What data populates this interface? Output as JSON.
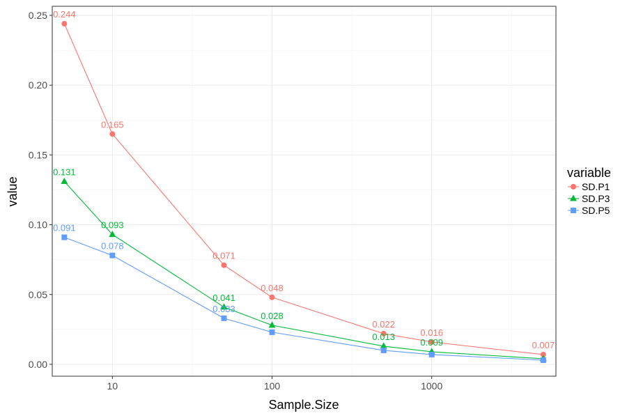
{
  "chart_data": {
    "type": "line",
    "title": "",
    "xlabel": "Sample.Size",
    "ylabel": "value",
    "x_scale": "log10",
    "xlim": [
      4.2,
      6000
    ],
    "ylim": [
      -0.0085,
      0.2565
    ],
    "x_ticks": [
      {
        "value": 10,
        "label": "10"
      },
      {
        "value": 100,
        "label": "100"
      },
      {
        "value": 1000,
        "label": "1000"
      }
    ],
    "y_ticks": [
      {
        "value": 0.0,
        "label": "0.00"
      },
      {
        "value": 0.05,
        "label": "0.05"
      },
      {
        "value": 0.1,
        "label": "0.10"
      },
      {
        "value": 0.15,
        "label": "0.15"
      },
      {
        "value": 0.2,
        "label": "0.20"
      },
      {
        "value": 0.25,
        "label": "0.25"
      }
    ],
    "grid": true,
    "x": [
      5,
      10,
      50,
      100,
      500,
      1000,
      5000
    ],
    "series": [
      {
        "name": "SD.P1",
        "color": "#F8766D",
        "marker": "circle",
        "values": [
          0.244,
          0.165,
          0.071,
          0.048,
          0.022,
          0.016,
          0.007
        ],
        "labels": [
          "0.244",
          "0.165",
          "0.071",
          "0.048",
          "0.022",
          "0.016",
          "0.007"
        ]
      },
      {
        "name": "SD.P3",
        "color": "#00BA38",
        "marker": "triangle",
        "values": [
          0.131,
          0.093,
          0.041,
          0.028,
          0.013,
          0.009,
          0.004
        ],
        "labels": [
          "0.131",
          "0.093",
          "0.041",
          "0.028",
          "0.013",
          "0.009",
          ""
        ]
      },
      {
        "name": "SD.P5",
        "color": "#619CFF",
        "marker": "square",
        "values": [
          0.091,
          0.078,
          0.033,
          0.023,
          0.01,
          0.007,
          0.003
        ],
        "labels": [
          "0.091",
          "0.078",
          "0.033",
          "",
          "",
          "",
          ""
        ]
      }
    ],
    "legend": {
      "title": "variable",
      "position": "right"
    }
  }
}
